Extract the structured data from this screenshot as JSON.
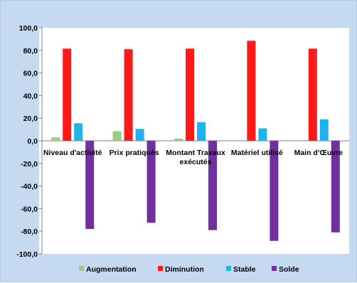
{
  "chart_data": {
    "type": "bar",
    "categories": [
      "Niveau d'activité",
      "Prix pratiqués",
      "Montant Travaux exécutés",
      "Matériel utilisé",
      "Main d'Œuvre"
    ],
    "category_label_lines": [
      [
        "Niveau d'activité"
      ],
      [
        "Prix pratiqués"
      ],
      [
        "Montant Travaux",
        "exécutés"
      ],
      [
        "Matériel utilisé"
      ],
      [
        "Main d'Œuvre"
      ]
    ],
    "series": [
      {
        "name": "Augmentation",
        "color": "#9bcb84",
        "values": [
          3.0,
          8.5,
          2.0,
          0.0,
          0.0
        ]
      },
      {
        "name": "Diminution",
        "color": "#ff1a1a",
        "values": [
          81.5,
          81.0,
          81.5,
          88.5,
          81.5
        ]
      },
      {
        "name": "Stable",
        "color": "#1fb3ee",
        "values": [
          15.5,
          10.5,
          16.5,
          11.0,
          19.0
        ]
      },
      {
        "name": "Solde",
        "color": "#7030a0",
        "values": [
          -78.0,
          -72.5,
          -79.0,
          -88.5,
          -81.0
        ]
      }
    ],
    "ylim": [
      -100,
      100
    ],
    "yticks": [
      100,
      80,
      60,
      40,
      20,
      0,
      -20,
      -40,
      -60,
      -80,
      -100
    ],
    "ytick_labels": [
      "100,0",
      "80,0",
      "60,0",
      "40,0",
      "20,0",
      "0,0",
      "-20,0",
      "-40,0",
      "-60,0",
      "-80,0",
      "-100,0"
    ],
    "title": "",
    "xlabel": "",
    "ylabel": "",
    "grid": false,
    "legend_position": "bottom"
  }
}
